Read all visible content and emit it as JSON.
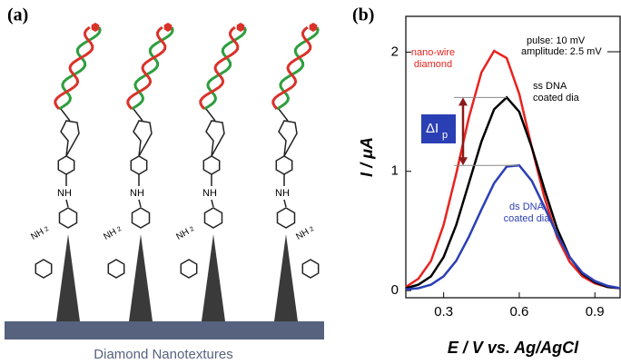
{
  "panel_a": {
    "label": "(a)",
    "caption": "Diamond Nanotextures",
    "amide": "NH",
    "amine": "NH",
    "amine_sub": "2"
  },
  "chart_data": {
    "type": "line",
    "label": "(b)",
    "x_label": "E / V vs. Ag/AgCl",
    "y_label": "I / μA",
    "x": [
      0.15,
      0.2,
      0.25,
      0.3,
      0.35,
      0.4,
      0.45,
      0.5,
      0.55,
      0.6,
      0.65,
      0.7,
      0.75,
      0.8,
      0.85,
      0.9,
      0.95,
      1.0
    ],
    "series": [
      {
        "label_lines": [
          "nano-wire",
          "diamond"
        ],
        "color": "#e8231f",
        "values": [
          0.03,
          0.1,
          0.25,
          0.55,
          0.98,
          1.45,
          1.83,
          2.01,
          1.95,
          1.65,
          1.2,
          0.78,
          0.45,
          0.24,
          0.12,
          0.06,
          0.03,
          0.02
        ]
      },
      {
        "label_lines": [
          "ss DNA",
          "coated dia"
        ],
        "color": "#000000",
        "values": [
          0.02,
          0.05,
          0.12,
          0.28,
          0.55,
          0.9,
          1.25,
          1.52,
          1.62,
          1.5,
          1.2,
          0.85,
          0.52,
          0.28,
          0.14,
          0.07,
          0.03,
          0.02
        ]
      },
      {
        "label_lines": [
          "ds DNA",
          "coated dia"
        ],
        "color": "#2b3fb5",
        "values": [
          0.01,
          0.02,
          0.05,
          0.12,
          0.25,
          0.45,
          0.68,
          0.9,
          1.04,
          1.05,
          0.92,
          0.7,
          0.47,
          0.28,
          0.15,
          0.08,
          0.04,
          0.02
        ]
      }
    ],
    "annotations": [
      "pulse: 10 mV",
      "amplitude: 2.5 mV"
    ],
    "delta_label": "ΔI",
    "delta_sub": "p",
    "xlim": [
      0.15,
      1.0
    ],
    "xticks": [
      0.3,
      0.6,
      0.9
    ],
    "ylim": [
      -0.06,
      2.3
    ],
    "yticks": [
      0,
      1,
      2
    ]
  }
}
